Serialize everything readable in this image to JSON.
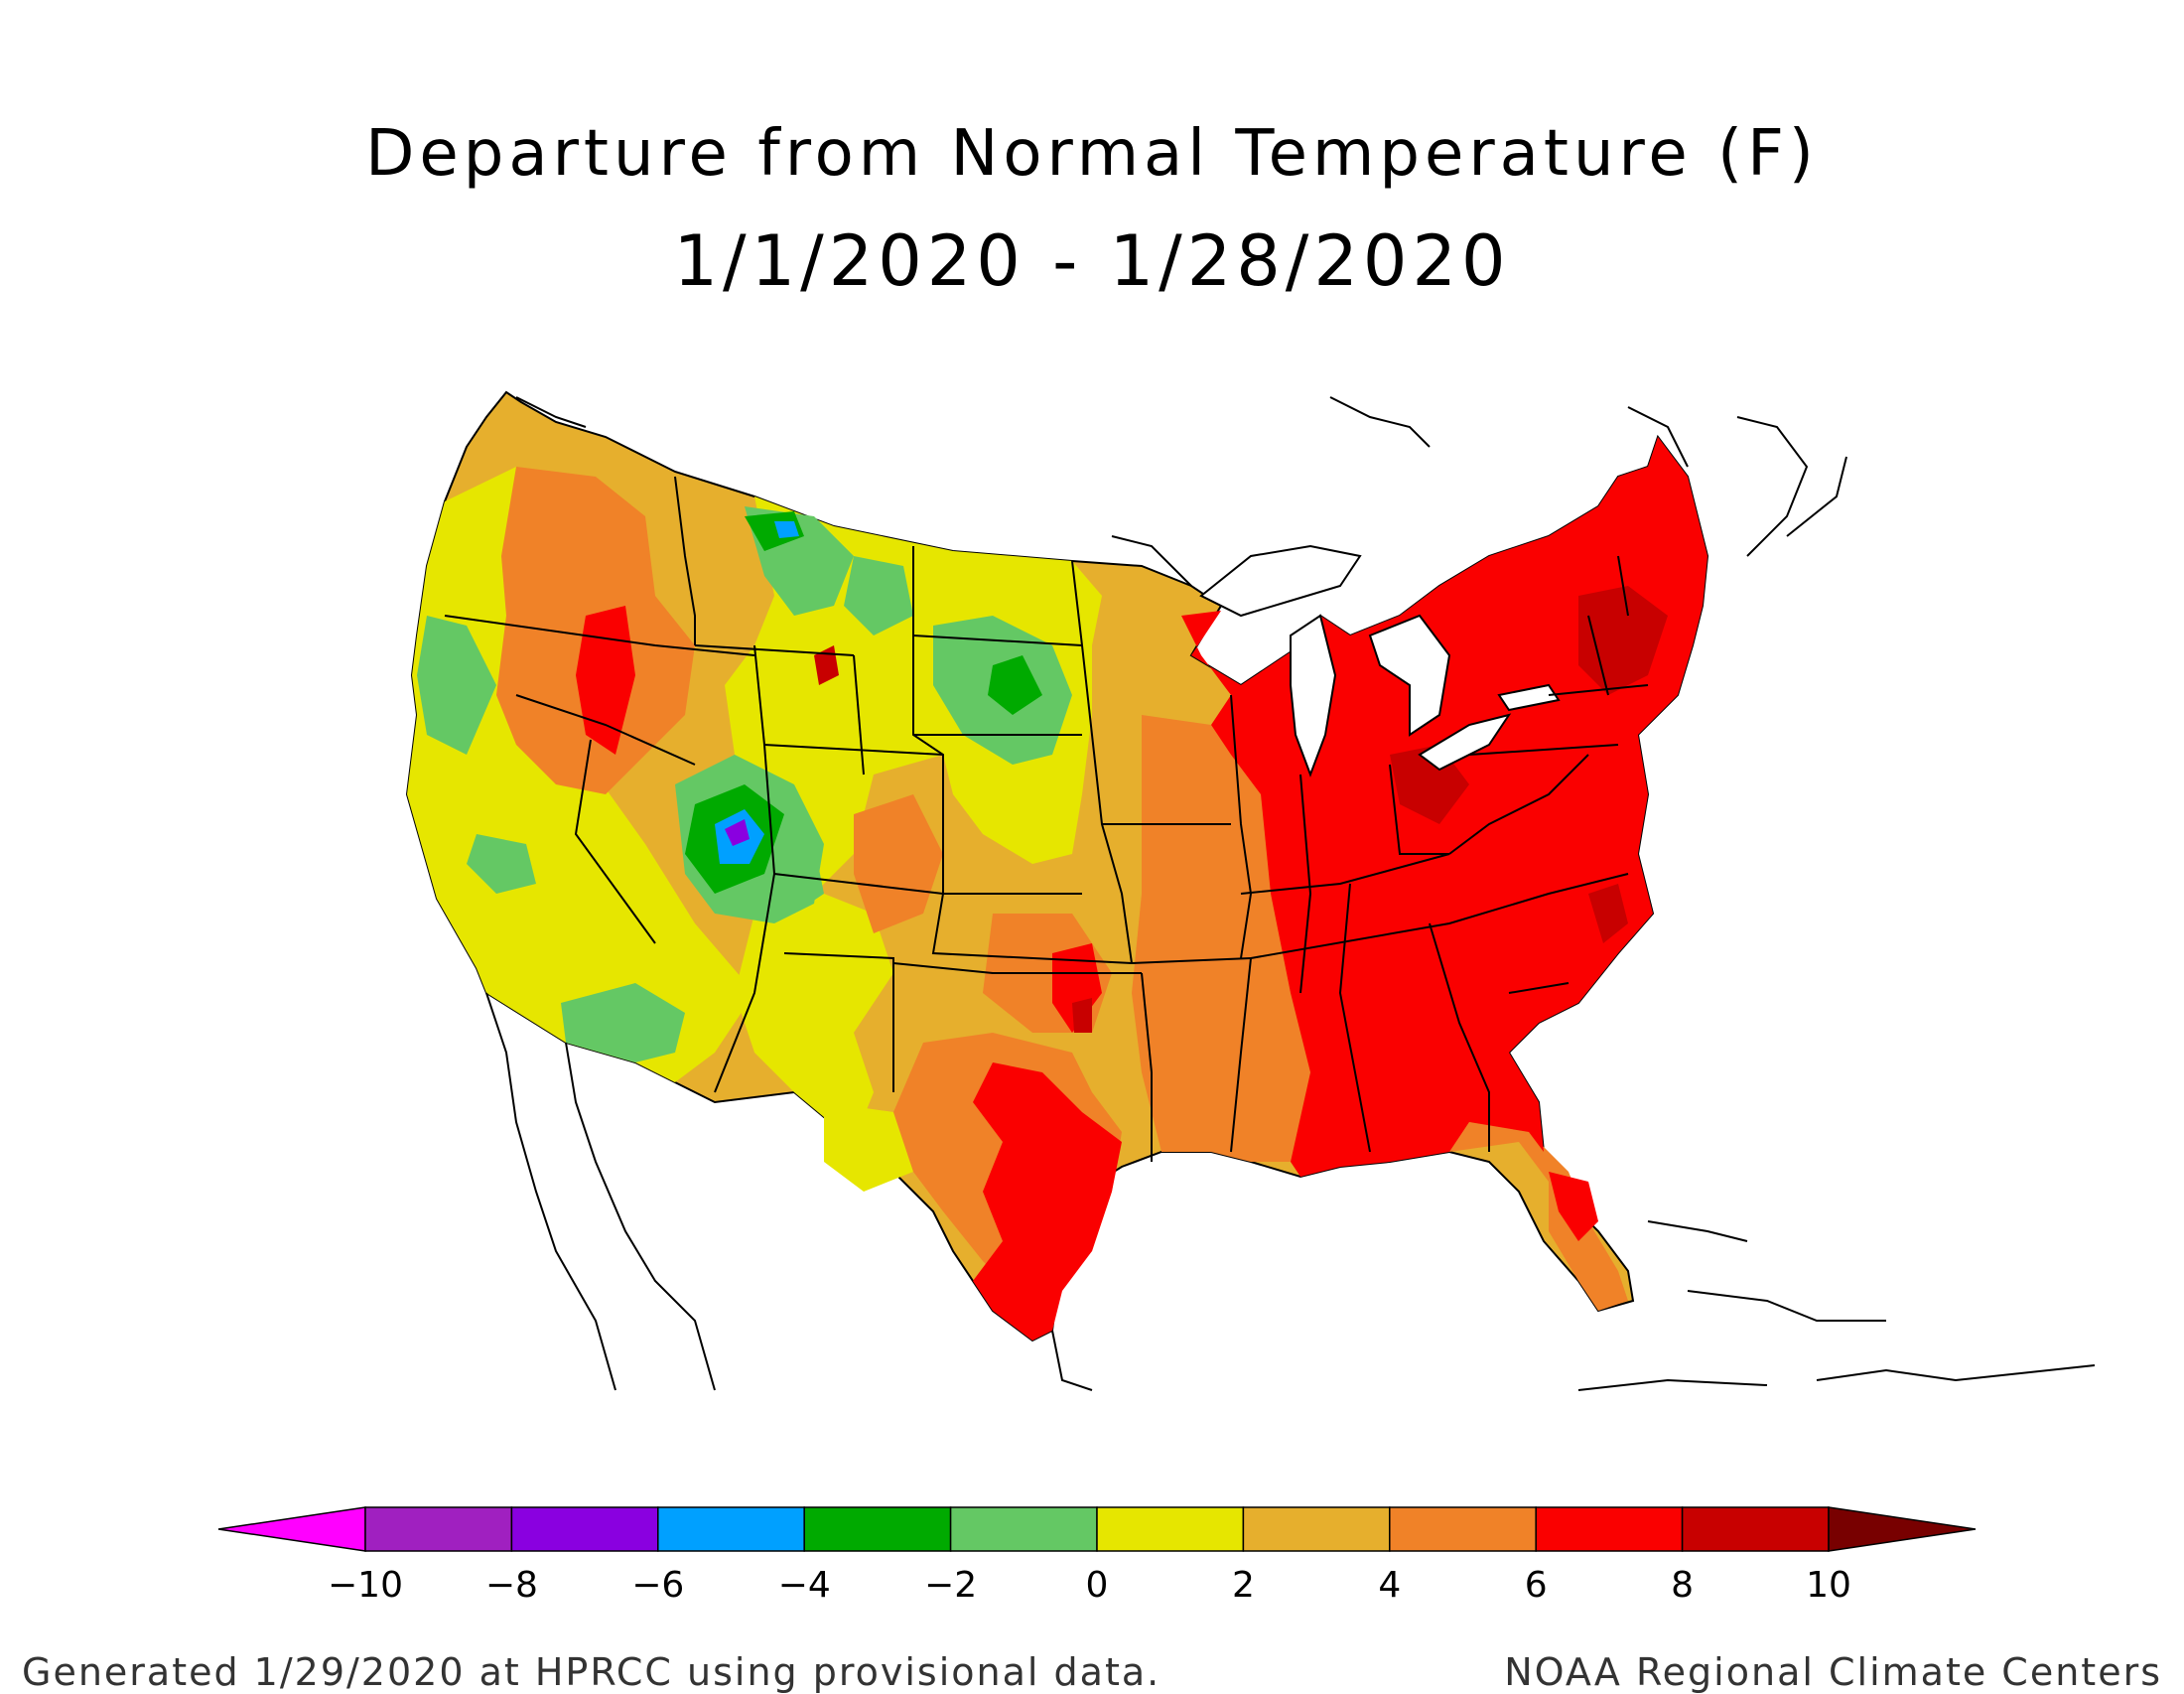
{
  "title": {
    "line1": "Departure from Normal Temperature (F)",
    "line2": "1/1/2020 - 1/28/2020"
  },
  "legend": {
    "bins": [
      {
        "color": "#ff00ff",
        "range": "< -10"
      },
      {
        "color": "#a020c0",
        "range": "-10 to -8"
      },
      {
        "color": "#8a00e0",
        "range": "-8 to -6"
      },
      {
        "color": "#00a0ff",
        "range": "-6 to -4"
      },
      {
        "color": "#00aa00",
        "range": "-4 to -2"
      },
      {
        "color": "#64c864",
        "range": "-2 to 0"
      },
      {
        "color": "#e6e600",
        "range": "0 to 2"
      },
      {
        "color": "#e6af2d",
        "range": "2 to 4"
      },
      {
        "color": "#f08228",
        "range": "4 to 6"
      },
      {
        "color": "#fa0000",
        "range": "6 to 8"
      },
      {
        "color": "#c80000",
        "range": "8 to 10"
      },
      {
        "color": "#780000",
        "range": "> 10"
      }
    ],
    "ticks": [
      "-10",
      "-8",
      "-6",
      "-4",
      "-2",
      "0",
      "2",
      "4",
      "6",
      "8",
      "10"
    ]
  },
  "footer": {
    "left": "Generated 1/29/2020 at HPRCC using provisional data.",
    "right": "NOAA Regional Climate Centers"
  },
  "colors": {
    "yellow": "#e6e600",
    "gold": "#e6af2d",
    "orange": "#f08228",
    "red": "#fa0000",
    "darkred": "#c80000",
    "lightgreen": "#64c864",
    "green": "#00aa00",
    "blue": "#00a0ff",
    "purple": "#8a00e0"
  }
}
